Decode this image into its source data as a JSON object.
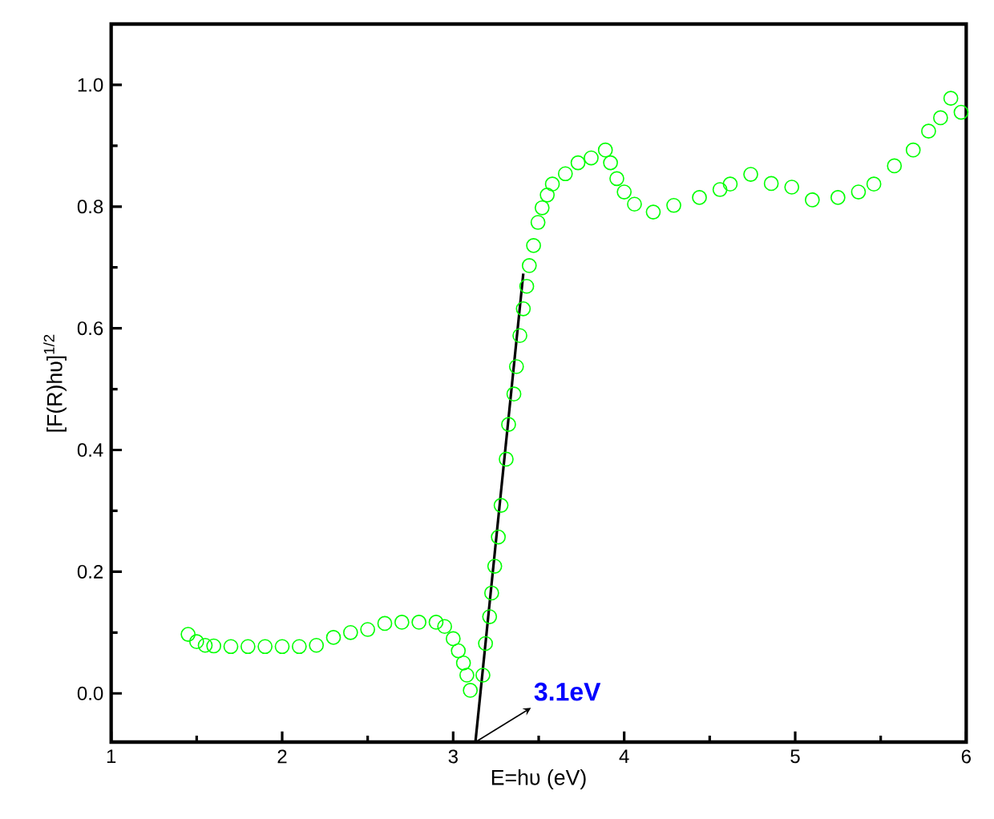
{
  "chart_data": {
    "type": "scatter",
    "xlabel": "E=hυ (eV)",
    "ylabel": "[F(R)hυ]$^{1/2}$",
    "xlim": [
      1,
      6
    ],
    "ylim": [
      -0.08,
      1.1
    ],
    "xticks": [
      1,
      2,
      3,
      4,
      5,
      6
    ],
    "yticks": [
      {
        "value": 0,
        "label": "0.0"
      },
      {
        "value": 0.2,
        "label": "0.2"
      },
      {
        "value": 0.4,
        "label": "0.4"
      },
      {
        "value": 0.6,
        "label": "0.6"
      },
      {
        "value": 0.8,
        "label": "0.8"
      },
      {
        "value": 1.0,
        "label": "1.0"
      }
    ],
    "grid": false,
    "series": [
      {
        "marker": "circle",
        "color": "#00ff00",
        "x": [
          1.45,
          1.5,
          1.55,
          1.6,
          1.7,
          1.8,
          1.9,
          2.0,
          2.1,
          2.2,
          2.3,
          2.4,
          2.5,
          2.6,
          2.7,
          2.8,
          2.9,
          2.95,
          3.0,
          3.03,
          3.06,
          3.08,
          3.1,
          3.174,
          3.189,
          3.213,
          3.225,
          3.243,
          3.264,
          3.28,
          3.31,
          3.324,
          3.355,
          3.37,
          3.39,
          3.41,
          3.43,
          3.445,
          3.47,
          3.496,
          3.52,
          3.55,
          3.58,
          3.656,
          3.73,
          3.807,
          3.89,
          3.92,
          3.957,
          4.0,
          4.06,
          4.17,
          4.29,
          4.44,
          4.56,
          4.62,
          4.74,
          4.86,
          4.98,
          5.1,
          5.25,
          5.37,
          5.46,
          5.58,
          5.69,
          5.78,
          5.85,
          5.91,
          5.97
        ],
        "values": [
          0.097,
          0.085,
          0.079,
          0.078,
          0.077,
          0.077,
          0.077,
          0.077,
          0.077,
          0.079,
          0.092,
          0.1,
          0.105,
          0.115,
          0.117,
          0.117,
          0.117,
          0.11,
          0.09,
          0.07,
          0.05,
          0.03,
          0.005,
          0.03,
          0.082,
          0.126,
          0.165,
          0.209,
          0.257,
          0.309,
          0.385,
          0.442,
          0.492,
          0.537,
          0.588,
          0.632,
          0.669,
          0.703,
          0.736,
          0.774,
          0.798,
          0.819,
          0.837,
          0.854,
          0.872,
          0.88,
          0.893,
          0.872,
          0.846,
          0.824,
          0.804,
          0.791,
          0.802,
          0.815,
          0.828,
          0.837,
          0.853,
          0.838,
          0.832,
          0.811,
          0.815,
          0.824,
          0.837,
          0.867,
          0.893,
          0.924,
          0.946,
          0.978,
          0.955
        ]
      },
      {
        "type": "line",
        "color": "#000000",
        "x": [
          3.13,
          3.41
        ],
        "values": [
          -0.08,
          0.69
        ]
      }
    ],
    "annotations": [
      {
        "text": "3.1eV",
        "x": 3.13,
        "y": -0.08
      }
    ]
  }
}
